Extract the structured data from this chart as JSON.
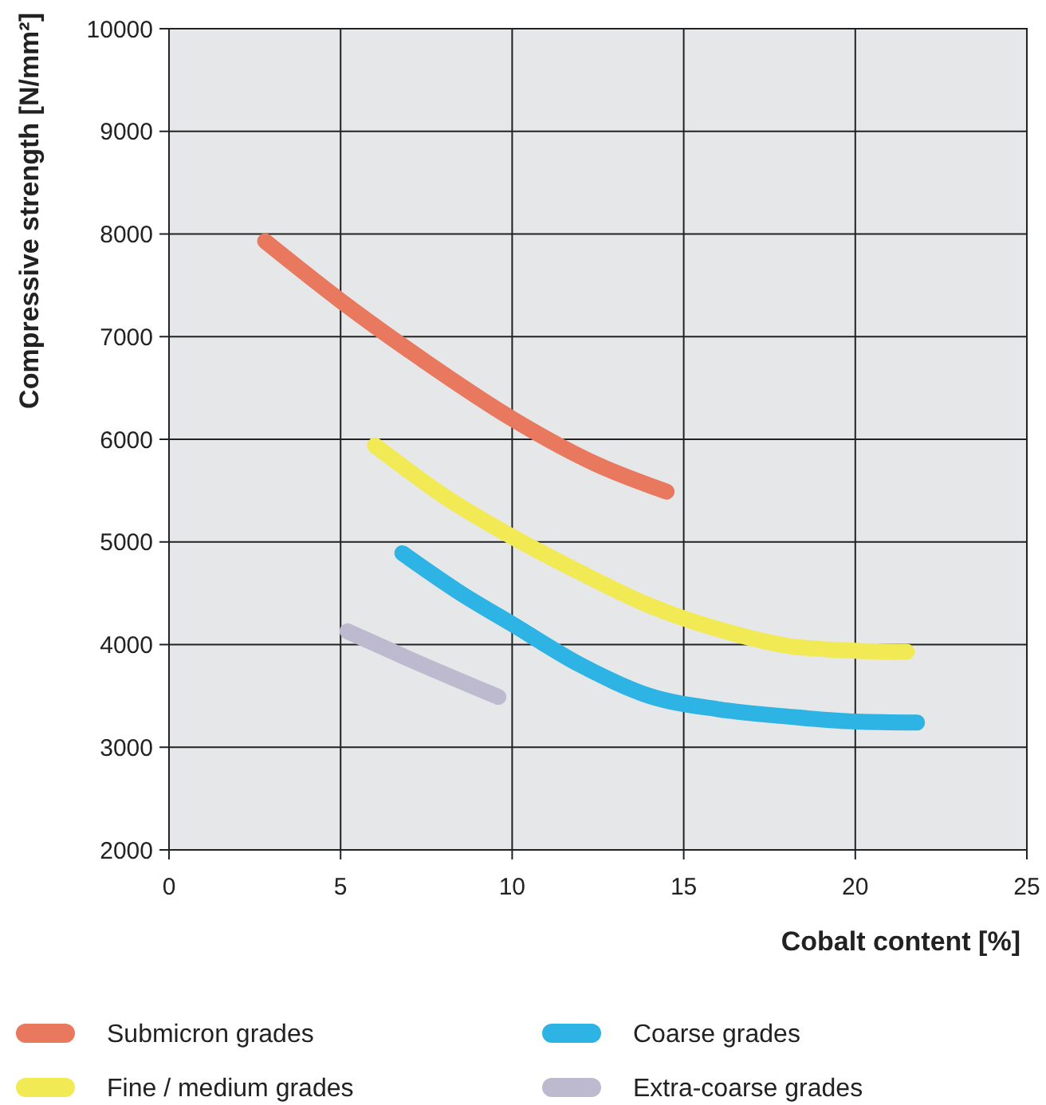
{
  "chart_data": {
    "type": "line",
    "xlabel": "Cobalt content [%]",
    "ylabel": "Compressive strength [N/mm²]",
    "xlim": [
      0,
      25
    ],
    "xticks": [
      0,
      5,
      10,
      15,
      20,
      25
    ],
    "ylim": [
      2000,
      10000
    ],
    "yticks": [
      2000,
      3000,
      4000,
      5000,
      6000,
      7000,
      8000,
      9000,
      10000
    ],
    "grid": true,
    "legend": "bottom",
    "marker": "none",
    "line_style": "solid",
    "series": [
      {
        "name": "Submicron grades",
        "color": "#e8785e",
        "x": [
          2.8,
          5,
          7.5,
          10,
          12.5,
          14.5
        ],
        "values": [
          7930,
          7350,
          6750,
          6200,
          5750,
          5490
        ]
      },
      {
        "name": "Fine / medium grades",
        "color": "#f2ea55",
        "x": [
          6,
          8,
          10,
          12,
          14,
          16,
          18,
          20,
          21.5
        ],
        "values": [
          5940,
          5450,
          5050,
          4700,
          4380,
          4150,
          3990,
          3940,
          3930
        ]
      },
      {
        "name": "Coarse grades",
        "color": "#2db4e4",
        "x": [
          6.8,
          8.5,
          10,
          12,
          14,
          16,
          18,
          20,
          21.8
        ],
        "values": [
          4890,
          4500,
          4200,
          3800,
          3500,
          3370,
          3300,
          3250,
          3240
        ]
      },
      {
        "name": "Extra-coarse grades",
        "color": "#bdbacf",
        "x": [
          5.2,
          7,
          9.6
        ],
        "values": [
          4130,
          3860,
          3490
        ]
      }
    ]
  }
}
